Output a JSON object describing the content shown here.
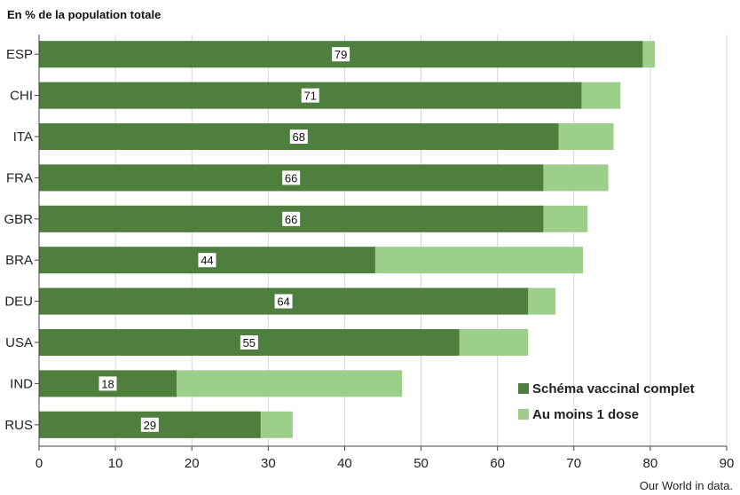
{
  "chart_data": {
    "type": "bar",
    "orientation": "horizontal",
    "stacked": "overlay",
    "subtitle": "En % de la population totale",
    "source": "Our World in data.",
    "categories": [
      "ESP",
      "CHI",
      "ITA",
      "FRA",
      "GBR",
      "BRA",
      "DEU",
      "USA",
      "IND",
      "RUS"
    ],
    "series": [
      {
        "name": "Au moins 1 dose",
        "color": "#9ccf8a",
        "values": [
          80.6,
          76.1,
          75.2,
          74.5,
          71.8,
          71.2,
          67.6,
          64.0,
          47.5,
          33.2
        ]
      },
      {
        "name": "Schéma vaccinal complet",
        "color": "#4e7f3f",
        "values": [
          79,
          71,
          68,
          66,
          66,
          44,
          64,
          55,
          18,
          29
        ],
        "data_labels": [
          "79",
          "71",
          "68",
          "66",
          "66",
          "44",
          "64",
          "55",
          "18",
          "29"
        ]
      }
    ],
    "xlim": [
      0,
      90
    ],
    "xticks": [
      0,
      10,
      20,
      30,
      40,
      50,
      60,
      70,
      80,
      90
    ],
    "grid": true,
    "legend_position": "bottom-right"
  }
}
